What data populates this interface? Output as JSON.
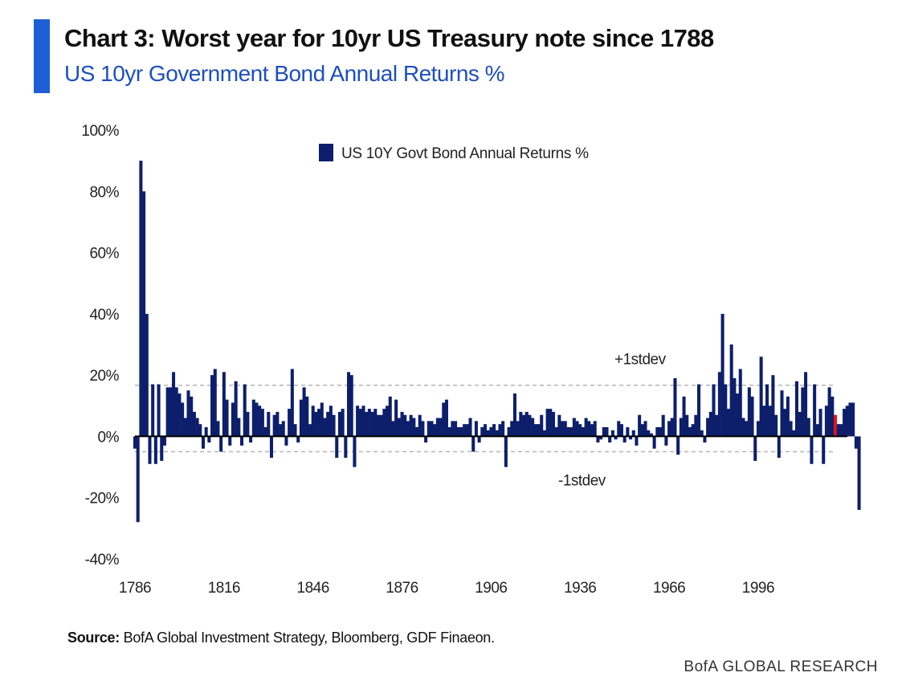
{
  "header": {
    "title": "Chart 3: Worst year for 10yr US Treasury note since 1788",
    "subtitle": "US 10yr Government Bond Annual Returns %"
  },
  "footer": {
    "source_label": "Source:",
    "source_text": "BofA Global Investment Strategy, Bloomberg, GDF Finaeon.",
    "brand": "BofA GLOBAL RESEARCH"
  },
  "colors": {
    "accent": "#1f5fd6",
    "bar": "#0d1f6b",
    "highlight": "#ee1111",
    "subtitle": "#1e4fbd"
  },
  "chart_data": {
    "type": "bar",
    "title": "Chart 3: Worst year for 10yr US Treasury note since 1788",
    "subtitle": "US 10yr Government Bond Annual Returns %",
    "legend": [
      "US 10Y Govt Bond Annual Returns %"
    ],
    "legend_position": "top-center",
    "x_ticks": [
      "1786",
      "1816",
      "1846",
      "1876",
      "1906",
      "1936",
      "1966",
      "1996"
    ],
    "y_ticks": [
      "100%",
      "80%",
      "60%",
      "40%",
      "20%",
      "0%",
      "-20%",
      "-40%"
    ],
    "ylim": [
      -40,
      100
    ],
    "xlim": [
      1786,
      2022
    ],
    "grid": false,
    "reference_lines": [
      {
        "label": "+1stdev",
        "value": 16.7
      },
      {
        "label": "-1stdev",
        "value": -5
      }
    ],
    "highlight_year": 2022,
    "series": [
      {
        "name": "US 10Y Govt Bond Annual Returns %",
        "start_year": 1786,
        "values": [
          -4,
          -28,
          90,
          80,
          40,
          -9,
          17,
          -9,
          17,
          -8,
          -3,
          16,
          16,
          21,
          16,
          14,
          11,
          6,
          15,
          13,
          8,
          6,
          4,
          -4,
          3,
          -2,
          20,
          22,
          5,
          -5,
          21,
          12,
          -3,
          11,
          18,
          6,
          -3,
          17,
          8,
          -2,
          12,
          11,
          10,
          9,
          3,
          8,
          -7,
          7,
          8,
          4,
          5,
          -3,
          9,
          22,
          4,
          -2,
          12,
          16,
          13,
          4,
          10,
          8,
          9,
          11,
          6,
          8,
          10,
          7,
          -7,
          8,
          9,
          -7,
          21,
          20,
          -10,
          10,
          9,
          10,
          8,
          9,
          8,
          9,
          7,
          7,
          9,
          10,
          13,
          5,
          12,
          6,
          8,
          7,
          5,
          7,
          6,
          3,
          7,
          5,
          -2,
          5,
          5,
          4,
          6,
          6,
          11,
          12,
          3,
          5,
          5,
          3,
          3,
          4,
          4,
          6,
          -5,
          5,
          -2,
          3,
          4,
          2,
          3,
          4,
          2,
          4,
          5,
          -10,
          3,
          5,
          14,
          5,
          8,
          7,
          8,
          7,
          6,
          4,
          4,
          7,
          2,
          9,
          9,
          8,
          3,
          7,
          5,
          5,
          3,
          3,
          6,
          5,
          4,
          3,
          6,
          5,
          4,
          5,
          -2,
          -1,
          3,
          3,
          -2,
          2,
          -1,
          5,
          4,
          -2,
          3,
          -1,
          2,
          -3,
          7,
          4,
          5,
          2,
          1,
          -4,
          3,
          3,
          7,
          -3,
          5,
          6,
          19,
          -6,
          6,
          13,
          7,
          3,
          4,
          7,
          17,
          2,
          -2,
          6,
          8,
          17,
          7,
          21,
          40,
          17,
          9,
          30,
          19,
          14,
          22,
          6,
          5,
          16,
          13,
          -8,
          5,
          26,
          10,
          17,
          10,
          20,
          7,
          -7,
          15,
          9,
          13,
          5,
          2,
          18,
          8,
          16,
          21,
          6,
          -9,
          17,
          4,
          9,
          -9,
          10,
          16,
          13,
          7,
          4,
          4,
          9,
          10,
          11,
          11,
          -4,
          -24
        ]
      }
    ]
  }
}
